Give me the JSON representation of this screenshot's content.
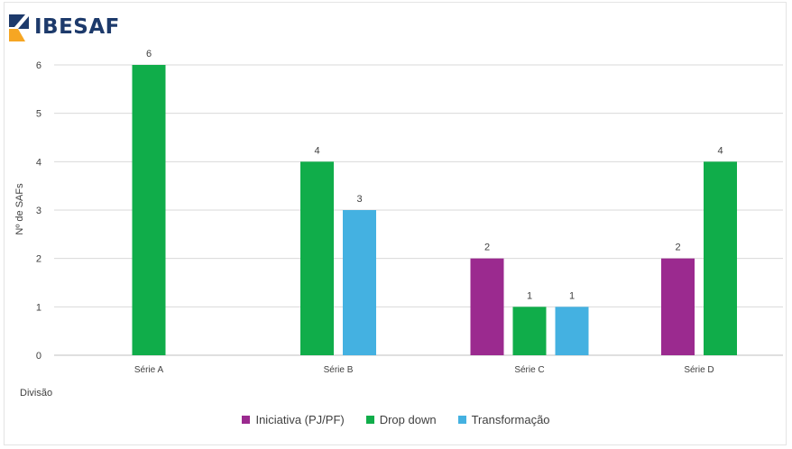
{
  "brand": {
    "name": "IBESAF"
  },
  "chart_data": {
    "type": "bar",
    "categories": [
      "Série A",
      "Série B",
      "Série C",
      "Série D"
    ],
    "series": [
      {
        "name": "Iniciativa (PJ/PF)",
        "color": "#9b2a8f",
        "values": [
          null,
          null,
          2,
          2
        ]
      },
      {
        "name": "Drop down",
        "color": "#10ad4a",
        "values": [
          6,
          4,
          1,
          4
        ]
      },
      {
        "name": "Transformação",
        "color": "#44b1e1",
        "values": [
          null,
          3,
          1,
          null
        ]
      }
    ],
    "yticks": [
      "0",
      "1",
      "2",
      "3",
      "4",
      "5",
      "6"
    ],
    "ylim": [
      0,
      6
    ],
    "ylabel": "Nº de SAFs",
    "xlabel": "Divisão",
    "grid": true,
    "legend_position": "bottom"
  }
}
